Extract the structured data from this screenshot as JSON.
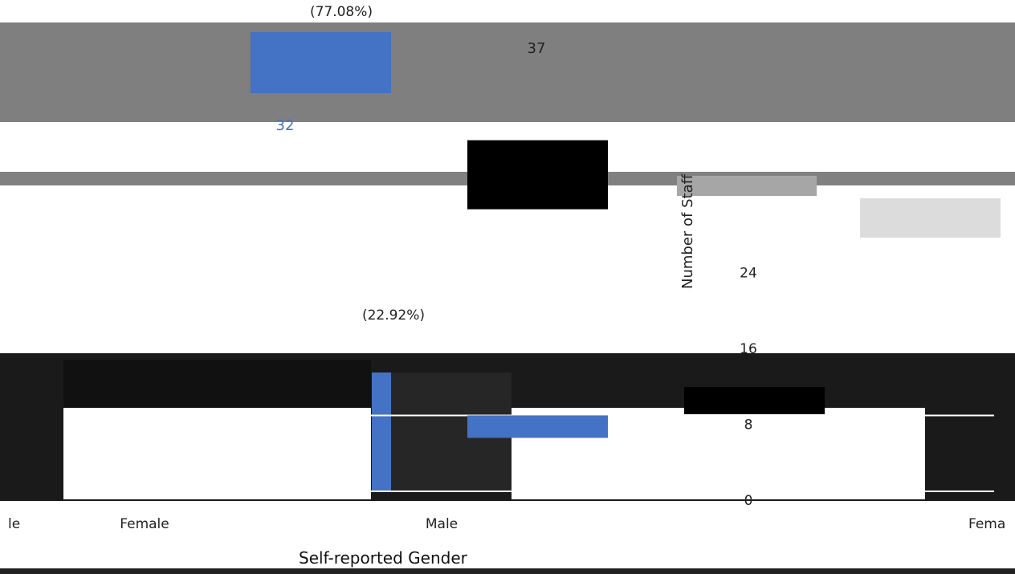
{
  "chart_data": {
    "type": "bar",
    "xlabel": "Self-reported Gender",
    "ylabel": "Number of Staff",
    "ylim": [
      0,
      40
    ],
    "yticks": [
      0,
      8,
      16,
      24
    ],
    "categories": [
      "Female",
      "Male"
    ],
    "series": [
      {
        "values": [
          32,
          8
        ],
        "color": "#4472c4"
      },
      {
        "values": [
          37,
          11
        ],
        "color": "#000000"
      }
    ],
    "data_labels": [
      "32",
      "37"
    ],
    "percent_labels": [
      "(77.08%)",
      "(22.92%)"
    ],
    "grid": true,
    "edge_labels": {
      "left": "le",
      "right": "Fema"
    }
  }
}
